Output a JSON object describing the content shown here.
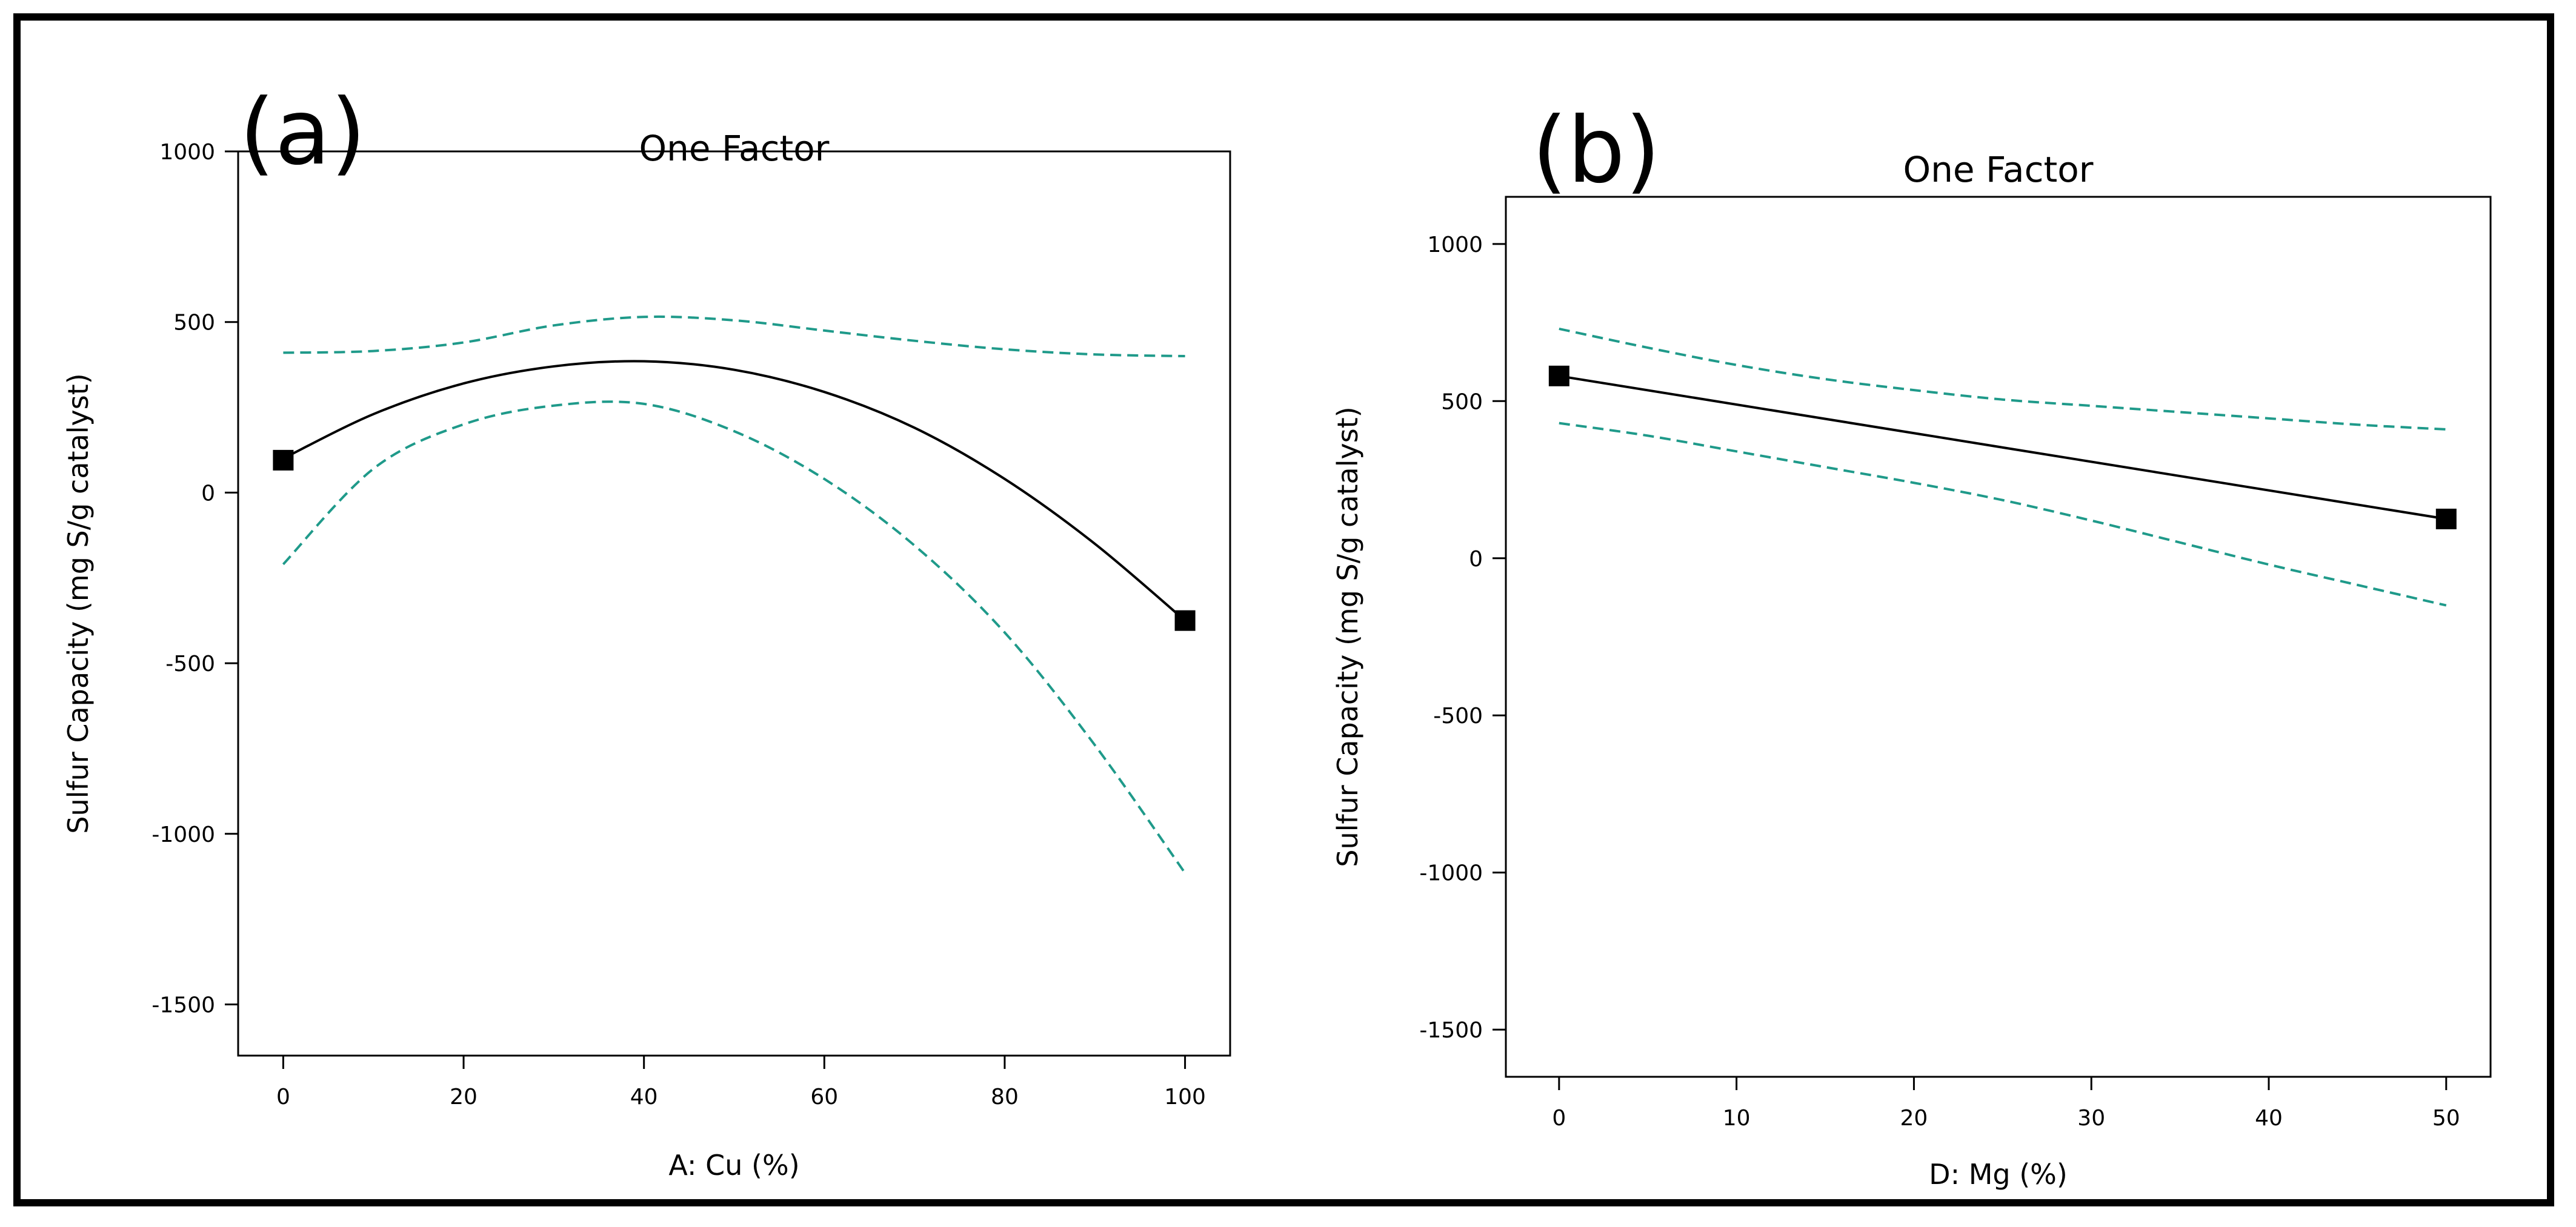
{
  "chart_data": [
    {
      "panel_label": "(a)",
      "type": "line",
      "title": "One Factor",
      "xlabel": "A: Cu (%)",
      "ylabel": "Sulfur Capacity (mg S/g catalyst)",
      "xlim": [
        -5,
        105
      ],
      "ylim": [
        -1650,
        1000
      ],
      "xticks": [
        0,
        20,
        40,
        60,
        80,
        100
      ],
      "yticks": [
        1000,
        500,
        0,
        -500,
        -1000,
        -1500
      ],
      "series": [
        {
          "name": "prediction",
          "style": "solid",
          "color": "#000000",
          "x": [
            0,
            10,
            20,
            30,
            40,
            50,
            60,
            70,
            80,
            90,
            100
          ],
          "y": [
            100,
            230,
            320,
            370,
            385,
            360,
            295,
            190,
            40,
            -150,
            -375
          ]
        },
        {
          "name": "upper-ci",
          "style": "dashed",
          "color": "#1f9a8a",
          "x": [
            0,
            10,
            20,
            30,
            40,
            50,
            60,
            70,
            80,
            90,
            100
          ],
          "y": [
            410,
            415,
            440,
            490,
            515,
            505,
            475,
            445,
            420,
            405,
            400
          ]
        },
        {
          "name": "lower-ci",
          "style": "dashed",
          "color": "#1f9a8a",
          "x": [
            0,
            10,
            20,
            30,
            40,
            50,
            60,
            70,
            80,
            90,
            100
          ],
          "y": [
            -210,
            70,
            200,
            255,
            260,
            180,
            40,
            -155,
            -410,
            -740,
            -1115
          ]
        }
      ],
      "points": [
        {
          "x": 0,
          "y": 95
        },
        {
          "x": 100,
          "y": -375
        }
      ]
    },
    {
      "panel_label": "(b)",
      "type": "line",
      "title": "One Factor",
      "xlabel": "D: Mg (%)",
      "ylabel": "Sulfur Capacity (mg S/g catalyst)",
      "xlim": [
        -3,
        52.5
      ],
      "ylim": [
        -1650,
        1150
      ],
      "xticks": [
        0,
        10,
        20,
        30,
        40,
        50
      ],
      "yticks": [
        1000,
        500,
        0,
        -500,
        -1000,
        -1500
      ],
      "series": [
        {
          "name": "prediction",
          "style": "solid",
          "color": "#000000",
          "x": [
            0,
            50
          ],
          "y": [
            580,
            125
          ]
        },
        {
          "name": "upper-ci",
          "style": "dashed",
          "color": "#1f9a8a",
          "x": [
            0,
            5,
            10,
            15,
            20,
            25,
            30,
            35,
            40,
            45,
            50
          ],
          "y": [
            730,
            670,
            615,
            570,
            535,
            505,
            485,
            465,
            445,
            425,
            410
          ]
        },
        {
          "name": "lower-ci",
          "style": "dashed",
          "color": "#1f9a8a",
          "x": [
            0,
            5,
            10,
            15,
            20,
            25,
            30,
            35,
            40,
            45,
            50
          ],
          "y": [
            430,
            390,
            340,
            290,
            240,
            185,
            120,
            50,
            -20,
            -85,
            -150
          ]
        }
      ],
      "points": [
        {
          "x": 0,
          "y": 580
        },
        {
          "x": 50,
          "y": 125
        }
      ]
    }
  ]
}
